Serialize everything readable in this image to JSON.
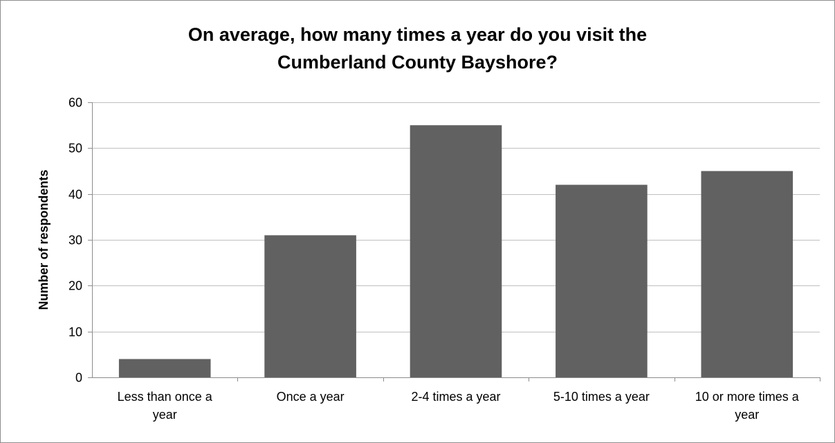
{
  "chart_data": {
    "type": "bar",
    "title_lines": [
      "On average, how many times a year do you visit the",
      "Cumberland County Bayshore?"
    ],
    "ylabel": "Number of respondents",
    "xlabel": "",
    "categories": [
      [
        "Less than once a",
        "year"
      ],
      [
        "Once a year"
      ],
      [
        "2-4 times a year"
      ],
      [
        "5-10 times a year"
      ],
      [
        "10 or more times a",
        "year"
      ]
    ],
    "values": [
      4,
      31,
      55,
      42,
      45
    ],
    "ylim": [
      0,
      60
    ],
    "yticks": [
      "0",
      "10",
      "20",
      "30",
      "40",
      "50",
      "60"
    ],
    "grid": true,
    "legend": "none",
    "bar_color": "#616161",
    "grid_color": "#bfbfbf"
  }
}
